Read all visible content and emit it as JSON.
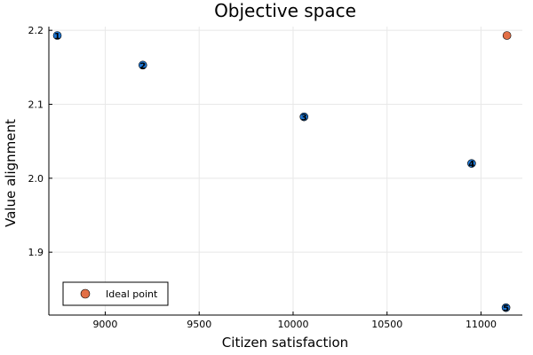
{
  "chart_data": {
    "type": "scatter",
    "title": "Objective space",
    "xlabel": "Citizen satisfaction",
    "ylabel": "Value alignment",
    "xlim": [
      8700,
      11220
    ],
    "ylim": [
      1.815,
      2.205
    ],
    "x_ticks": [
      9000,
      9500,
      10000,
      10500,
      11000
    ],
    "x_tick_labels": [
      "9000",
      "9500",
      "10000",
      "10500",
      "11000"
    ],
    "y_ticks": [
      1.9,
      2.0,
      2.1,
      2.2
    ],
    "y_tick_labels": [
      "1.9",
      "2.0",
      "2.1",
      "2.2"
    ],
    "grid": true,
    "legend_position": "bottom-left",
    "series": [
      {
        "color": "#1f77d4",
        "points": [
          {
            "x": 8745,
            "y": 2.193,
            "label": "1"
          },
          {
            "x": 9200,
            "y": 2.153,
            "label": "2"
          },
          {
            "x": 10058,
            "y": 2.083,
            "label": "3"
          },
          {
            "x": 10950,
            "y": 2.02,
            "label": "4"
          },
          {
            "x": 11133,
            "y": 1.825,
            "label": "5"
          }
        ]
      },
      {
        "name": "Ideal point",
        "color": "#e26f46",
        "points": [
          {
            "x": 11138,
            "y": 2.193
          }
        ]
      }
    ]
  }
}
